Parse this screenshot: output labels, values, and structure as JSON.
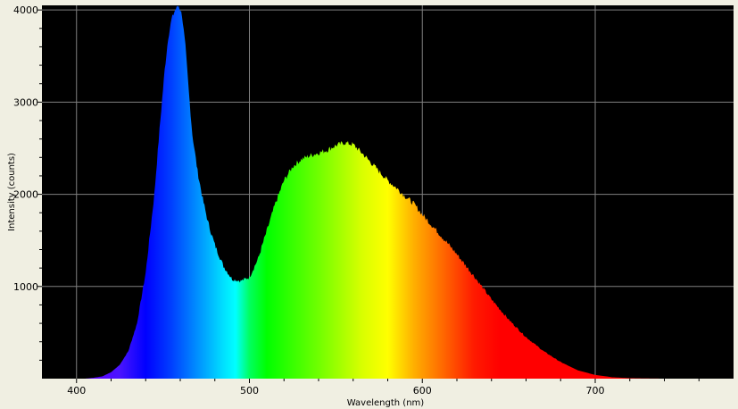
{
  "chart_data": {
    "type": "area",
    "title": "",
    "xlabel": "Wavelength (nm)",
    "ylabel": "Intensity (counts)",
    "xlim": [
      380,
      780
    ],
    "ylim": [
      0,
      4050
    ],
    "x_ticks": [
      400,
      500,
      600,
      700
    ],
    "y_ticks": [
      1000,
      2000,
      3000,
      4000
    ],
    "x_minor_step": 20,
    "y_minor_step": 200,
    "grid": true,
    "fill": "wavelength spectrum colors",
    "colors": {
      "plot_background": "#000000",
      "grid": "#808080",
      "frame": "#f0efe2"
    },
    "series": [
      {
        "x": [
          405,
          410,
          415,
          420,
          425,
          430,
          435,
          440,
          445,
          448,
          451,
          453,
          455,
          457,
          459,
          461,
          463,
          465,
          467,
          470,
          473,
          476,
          480,
          485,
          490,
          495,
          500,
          505,
          510,
          515,
          520,
          525,
          530,
          535,
          540,
          545,
          550,
          555,
          560,
          565,
          570,
          575,
          580,
          585,
          590,
          595,
          600,
          610,
          620,
          630,
          640,
          650,
          660,
          670,
          680,
          690,
          700,
          710,
          720,
          730,
          740,
          760
        ],
        "values": [
          0,
          10,
          25,
          70,
          150,
          300,
          600,
          1150,
          2000,
          2700,
          3350,
          3700,
          3900,
          4000,
          4050,
          3950,
          3600,
          3100,
          2650,
          2250,
          1950,
          1700,
          1450,
          1220,
          1080,
          1060,
          1100,
          1300,
          1600,
          1900,
          2150,
          2300,
          2380,
          2420,
          2450,
          2480,
          2530,
          2560,
          2540,
          2450,
          2350,
          2250,
          2150,
          2070,
          1980,
          1900,
          1780,
          1570,
          1350,
          1110,
          860,
          640,
          450,
          300,
          180,
          90,
          40,
          15,
          5,
          2,
          0,
          0
        ]
      }
    ]
  }
}
